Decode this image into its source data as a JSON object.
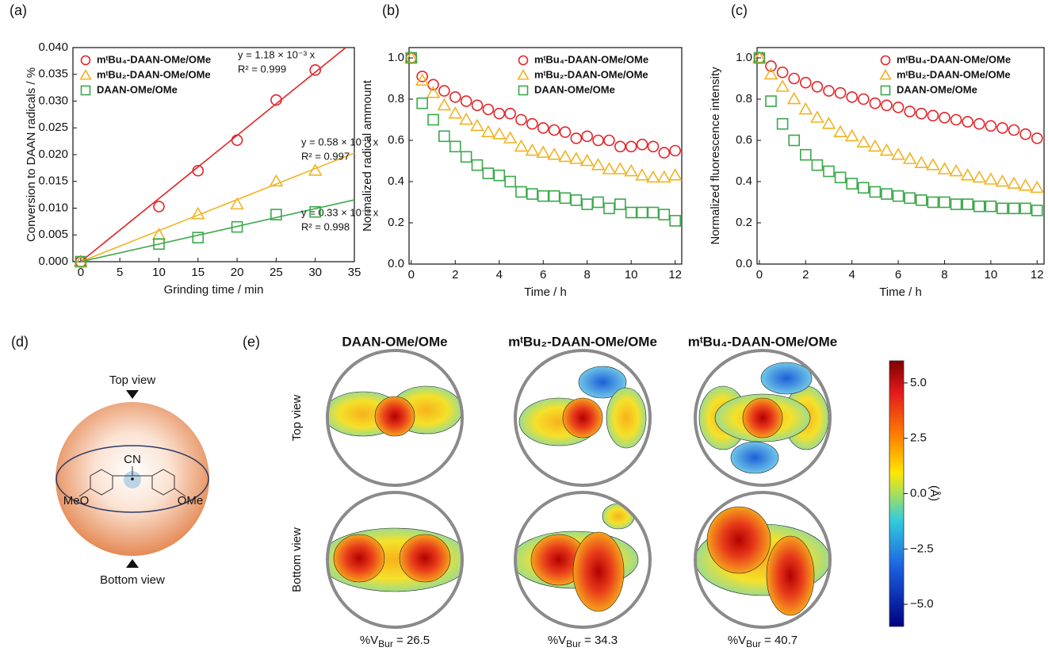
{
  "chart_data": [
    {
      "type": "scatter",
      "panel_label": "(a)",
      "x_label": "Grinding time / min",
      "y_label": "Conversion to DAAN radicals / %",
      "legend": "upper left",
      "xlim": [
        -1,
        35
      ],
      "ylim": [
        0,
        0.04
      ],
      "xticks": [
        0,
        5,
        10,
        15,
        20,
        25,
        30,
        35
      ],
      "yticks": [
        {
          "value": 0,
          "label": "0.000"
        },
        0.005,
        {
          "value": 0.01,
          "label": "0.010"
        },
        0.015,
        {
          "value": 0.02,
          "label": "0.020"
        },
        0.025,
        {
          "value": 0.03,
          "label": "0.030"
        },
        0.035,
        {
          "value": 0.04,
          "label": "0.040"
        }
      ],
      "x": [
        0,
        10,
        15,
        20,
        25,
        30
      ],
      "series": [
        {
          "name": "mᵗBu₄-DAAN-OMe/OMe",
          "color": "#e52228",
          "marker": "circle",
          "values": [
            0,
            0.0103,
            0.017,
            0.0227,
            0.0302,
            0.0358
          ],
          "fit": {
            "slope": 0.00118,
            "label": "y = 1.18 × 10⁻³ x",
            "r2_label": "R² = 0.999"
          }
        },
        {
          "name": "mᵗBu₂-DAAN-OMe/OMe",
          "color": "#f0b323",
          "marker": "triangle",
          "values": [
            0,
            0.005,
            0.0089,
            0.0107,
            0.015,
            0.017
          ],
          "fit": {
            "slope": 0.00058,
            "label": "y = 0.58 × 10⁻³ x",
            "r2_label": "R² = 0.997"
          }
        },
        {
          "name": "DAAN-OMe/OMe",
          "color": "#3aa84a",
          "marker": "square",
          "values": [
            0,
            0.0033,
            0.0045,
            0.0065,
            0.0088,
            0.0093
          ],
          "fit": {
            "slope": 0.00033,
            "label": "y = 0.33 × 10⁻³ x",
            "r2_label": "R² = 0.998"
          }
        }
      ]
    },
    {
      "type": "scatter",
      "panel_label": "(b)",
      "x_label": "Time / h",
      "y_label": "Normalized radical ammount",
      "legend": "upper right",
      "xlim": [
        -0.1,
        12.3
      ],
      "ylim": [
        0,
        1.05
      ],
      "xticks": [
        0,
        2,
        4,
        6,
        8,
        10,
        12
      ],
      "yticks": [
        {
          "value": 0,
          "label": "0.0"
        },
        0.2,
        0.4,
        0.6,
        0.8,
        {
          "value": 1,
          "label": "1.0"
        }
      ],
      "x": [
        0,
        0.5,
        1,
        1.5,
        2,
        2.5,
        3,
        3.5,
        4,
        4.5,
        5,
        5.5,
        6,
        6.5,
        7,
        7.5,
        8,
        8.5,
        9,
        9.5,
        10,
        10.5,
        11,
        11.5,
        12
      ],
      "series": [
        {
          "name": "mᵗBu₄-DAAN-OMe/OMe",
          "color": "#e52228",
          "marker": "circle",
          "values": [
            1.0,
            0.91,
            0.87,
            0.84,
            0.81,
            0.79,
            0.77,
            0.75,
            0.73,
            0.73,
            0.7,
            0.68,
            0.66,
            0.65,
            0.64,
            0.61,
            0.62,
            0.6,
            0.6,
            0.57,
            0.57,
            0.58,
            0.57,
            0.54,
            0.55
          ]
        },
        {
          "name": "mᵗBu₂-DAAN-OMe/OMe",
          "color": "#f0b323",
          "marker": "triangle",
          "values": [
            1.0,
            0.89,
            0.83,
            0.77,
            0.73,
            0.7,
            0.67,
            0.64,
            0.63,
            0.61,
            0.57,
            0.55,
            0.54,
            0.53,
            0.52,
            0.51,
            0.5,
            0.48,
            0.46,
            0.46,
            0.45,
            0.43,
            0.42,
            0.42,
            0.43
          ]
        },
        {
          "name": "DAAN-OMe/OMe",
          "color": "#3aa84a",
          "marker": "square",
          "values": [
            1.0,
            0.78,
            0.7,
            0.62,
            0.57,
            0.52,
            0.48,
            0.44,
            0.43,
            0.4,
            0.35,
            0.34,
            0.33,
            0.33,
            0.32,
            0.31,
            0.29,
            0.3,
            0.27,
            0.29,
            0.25,
            0.25,
            0.25,
            0.24,
            0.21
          ]
        }
      ]
    },
    {
      "type": "scatter",
      "panel_label": "(c)",
      "x_label": "Time / h",
      "y_label": "Normalized fluorescence intensity",
      "legend": "upper right",
      "xlim": [
        -0.1,
        12.3
      ],
      "ylim": [
        0,
        1.05
      ],
      "xticks": [
        0,
        2,
        4,
        6,
        8,
        10,
        12
      ],
      "yticks": [
        {
          "value": 0,
          "label": "0.0"
        },
        0.2,
        0.4,
        0.6,
        0.8,
        {
          "value": 1,
          "label": "1.0"
        }
      ],
      "x": [
        0,
        0.5,
        1,
        1.5,
        2,
        2.5,
        3,
        3.5,
        4,
        4.5,
        5,
        5.5,
        6,
        6.5,
        7,
        7.5,
        8,
        8.5,
        9,
        9.5,
        10,
        10.5,
        11,
        11.5,
        12
      ],
      "series": [
        {
          "name": "mᵗBu₄-DAAN-OMe/OMe",
          "color": "#e52228",
          "marker": "circle",
          "values": [
            1.0,
            0.96,
            0.93,
            0.9,
            0.88,
            0.86,
            0.84,
            0.83,
            0.81,
            0.8,
            0.78,
            0.77,
            0.76,
            0.74,
            0.73,
            0.72,
            0.71,
            0.7,
            0.69,
            0.68,
            0.67,
            0.66,
            0.65,
            0.63,
            0.61
          ]
        },
        {
          "name": "mᵗBu₂-DAAN-OMe/OMe",
          "color": "#f0b323",
          "marker": "triangle",
          "values": [
            1.0,
            0.92,
            0.86,
            0.8,
            0.75,
            0.71,
            0.68,
            0.64,
            0.62,
            0.59,
            0.57,
            0.55,
            0.53,
            0.51,
            0.49,
            0.48,
            0.46,
            0.45,
            0.43,
            0.42,
            0.41,
            0.4,
            0.39,
            0.38,
            0.37
          ]
        },
        {
          "name": "DAAN-OMe/OMe",
          "color": "#3aa84a",
          "marker": "square",
          "values": [
            1.0,
            0.79,
            0.68,
            0.6,
            0.53,
            0.48,
            0.45,
            0.42,
            0.39,
            0.37,
            0.35,
            0.34,
            0.33,
            0.32,
            0.31,
            0.3,
            0.3,
            0.29,
            0.29,
            0.28,
            0.28,
            0.27,
            0.27,
            0.27,
            0.26
          ]
        }
      ]
    }
  ],
  "panel_d": {
    "label": "(d)",
    "top": "Top view",
    "bottom": "Bottom view",
    "cn": "CN",
    "left": "MeO",
    "right": "OMe"
  },
  "panel_e": {
    "label": "(e)",
    "columns": [
      "DAAN-OMe/OMe",
      "mᵗBu₂-DAAN-OMe/OMe",
      "mᵗBu₄-DAAN-OMe/OMe"
    ],
    "rows": [
      "Top view",
      "Bottom view"
    ],
    "vbur": [
      {
        "main": "%V",
        "sub": "Bur",
        "rest": " = 26.5"
      },
      {
        "main": "%V",
        "sub": "Bur",
        "rest": " = 34.3"
      },
      {
        "main": "%V",
        "sub": "Bur",
        "rest": " = 40.7"
      }
    ],
    "colorbar": {
      "label": "(Å)",
      "lim": [
        -6,
        6
      ],
      "ticks": [
        {
          "value": 5,
          "label": "5.0"
        },
        {
          "value": 2.5,
          "label": "2.5"
        },
        {
          "value": 0,
          "label": "0.0"
        },
        {
          "value": -2.5,
          "label": "−2.5"
        },
        {
          "value": -5,
          "label": "−5.0"
        }
      ]
    }
  }
}
